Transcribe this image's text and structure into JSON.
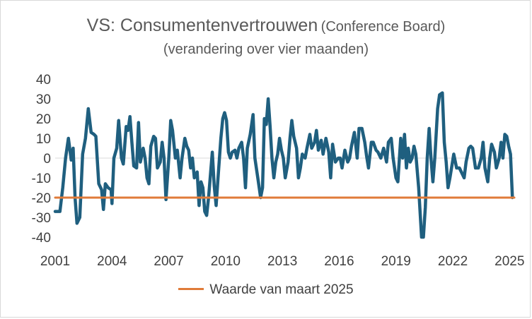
{
  "title": {
    "main": "VS: Consumentenvertrouwen",
    "sub": "(Conference Board)",
    "subtitle": "(verandering over vier maanden)"
  },
  "chart_data": {
    "type": "line",
    "x_ticks": [
      "2001",
      "2004",
      "2007",
      "2010",
      "2013",
      "2016",
      "2019",
      "2022",
      "2025"
    ],
    "y_ticks": [
      "40",
      "30",
      "20",
      "10",
      "0",
      "-10",
      "-20",
      "-30",
      "-40"
    ],
    "xlim": [
      2001.0,
      2025.25
    ],
    "ylim": [
      -40,
      40
    ],
    "series": [
      {
        "name": "Consumentenvertrouwen (verandering over vier maanden)",
        "color": "#1f5f7f",
        "points": [
          [
            2001.0,
            -27
          ],
          [
            2001.25,
            -27
          ],
          [
            2001.4,
            -15
          ],
          [
            2001.55,
            0
          ],
          [
            2001.7,
            10
          ],
          [
            2001.85,
            -1
          ],
          [
            2001.95,
            5
          ],
          [
            2002.05,
            -20
          ],
          [
            2002.15,
            -33
          ],
          [
            2002.3,
            -30
          ],
          [
            2002.45,
            2
          ],
          [
            2002.6,
            10
          ],
          [
            2002.75,
            25
          ],
          [
            2002.9,
            13
          ],
          [
            2003.05,
            12
          ],
          [
            2003.15,
            11
          ],
          [
            2003.3,
            -13
          ],
          [
            2003.45,
            -16
          ],
          [
            2003.55,
            -26
          ],
          [
            2003.65,
            -13
          ],
          [
            2003.8,
            -15
          ],
          [
            2003.95,
            -16
          ],
          [
            2004.0,
            -23
          ],
          [
            2004.1,
            0
          ],
          [
            2004.25,
            5
          ],
          [
            2004.35,
            19
          ],
          [
            2004.5,
            0
          ],
          [
            2004.6,
            -3
          ],
          [
            2004.75,
            16
          ],
          [
            2004.85,
            14
          ],
          [
            2004.95,
            21
          ],
          [
            2005.05,
            8
          ],
          [
            2005.15,
            -4
          ],
          [
            2005.3,
            -5
          ],
          [
            2005.4,
            18
          ],
          [
            2005.5,
            -2
          ],
          [
            2005.65,
            5
          ],
          [
            2005.75,
            0
          ],
          [
            2005.85,
            -10
          ],
          [
            2005.95,
            -13
          ],
          [
            2006.05,
            6
          ],
          [
            2006.2,
            11
          ],
          [
            2006.3,
            10
          ],
          [
            2006.4,
            -5
          ],
          [
            2006.55,
            -2
          ],
          [
            2006.65,
            8
          ],
          [
            2006.75,
            0
          ],
          [
            2006.85,
            -21
          ],
          [
            2007.0,
            0
          ],
          [
            2007.1,
            19
          ],
          [
            2007.2,
            14
          ],
          [
            2007.35,
            0
          ],
          [
            2007.45,
            4
          ],
          [
            2007.6,
            -10
          ],
          [
            2007.7,
            0
          ],
          [
            2007.85,
            10
          ],
          [
            2007.95,
            6
          ],
          [
            2008.05,
            4
          ],
          [
            2008.15,
            -5
          ],
          [
            2008.25,
            0
          ],
          [
            2008.35,
            -10
          ],
          [
            2008.5,
            -7
          ],
          [
            2008.6,
            -24
          ],
          [
            2008.7,
            -12
          ],
          [
            2008.8,
            -15
          ],
          [
            2008.9,
            -27
          ],
          [
            2009.0,
            -29
          ],
          [
            2009.1,
            -20
          ],
          [
            2009.3,
            3
          ],
          [
            2009.4,
            -14
          ],
          [
            2009.5,
            -24
          ],
          [
            2009.6,
            -10
          ],
          [
            2009.75,
            10
          ],
          [
            2009.85,
            20
          ],
          [
            2009.95,
            23
          ],
          [
            2010.05,
            19
          ],
          [
            2010.15,
            3
          ],
          [
            2010.25,
            0
          ],
          [
            2010.35,
            3
          ],
          [
            2010.5,
            4
          ],
          [
            2010.6,
            0
          ],
          [
            2010.7,
            5
          ],
          [
            2010.85,
            8
          ],
          [
            2010.95,
            0
          ],
          [
            2011.05,
            -15
          ],
          [
            2011.15,
            5
          ],
          [
            2011.3,
            12
          ],
          [
            2011.45,
            22
          ],
          [
            2011.55,
            0
          ],
          [
            2011.7,
            -10
          ],
          [
            2011.85,
            -20
          ],
          [
            2011.95,
            -15
          ],
          [
            2012.05,
            20
          ],
          [
            2012.15,
            17
          ],
          [
            2012.25,
            30
          ],
          [
            2012.35,
            16
          ],
          [
            2012.45,
            0
          ],
          [
            2012.55,
            -10
          ],
          [
            2012.65,
            -2
          ],
          [
            2012.75,
            2
          ],
          [
            2012.85,
            10
          ],
          [
            2012.95,
            4
          ],
          [
            2013.05,
            0
          ],
          [
            2013.15,
            -10
          ],
          [
            2013.3,
            -2
          ],
          [
            2013.4,
            10
          ],
          [
            2013.5,
            19
          ],
          [
            2013.6,
            11
          ],
          [
            2013.75,
            5
          ],
          [
            2013.85,
            -10
          ],
          [
            2013.95,
            -5
          ],
          [
            2014.05,
            2
          ],
          [
            2014.2,
            0
          ],
          [
            2014.3,
            5
          ],
          [
            2014.45,
            12
          ],
          [
            2014.55,
            5
          ],
          [
            2014.7,
            8
          ],
          [
            2014.8,
            14
          ],
          [
            2014.9,
            4
          ],
          [
            2015.05,
            9
          ],
          [
            2015.15,
            2
          ],
          [
            2015.3,
            10
          ],
          [
            2015.45,
            3
          ],
          [
            2015.55,
            -10
          ],
          [
            2015.65,
            7
          ],
          [
            2015.8,
            -2
          ],
          [
            2015.95,
            0
          ],
          [
            2016.05,
            0
          ],
          [
            2016.15,
            -5
          ],
          [
            2016.3,
            4
          ],
          [
            2016.45,
            -2
          ],
          [
            2016.55,
            0
          ],
          [
            2016.65,
            6
          ],
          [
            2016.8,
            13
          ],
          [
            2016.95,
            0
          ],
          [
            2017.05,
            15
          ],
          [
            2017.2,
            15
          ],
          [
            2017.35,
            8
          ],
          [
            2017.45,
            1
          ],
          [
            2017.55,
            -5
          ],
          [
            2017.7,
            8
          ],
          [
            2017.8,
            8
          ],
          [
            2017.95,
            4
          ],
          [
            2018.05,
            3
          ],
          [
            2018.2,
            0
          ],
          [
            2018.35,
            5
          ],
          [
            2018.5,
            -2
          ],
          [
            2018.6,
            8
          ],
          [
            2018.75,
            10
          ],
          [
            2018.85,
            0
          ],
          [
            2019.0,
            -10
          ],
          [
            2019.1,
            -12
          ],
          [
            2019.25,
            10
          ],
          [
            2019.35,
            0
          ],
          [
            2019.45,
            12
          ],
          [
            2019.55,
            -5
          ],
          [
            2019.65,
            5
          ],
          [
            2019.75,
            -2
          ],
          [
            2019.85,
            0
          ],
          [
            2019.95,
            6
          ],
          [
            2020.05,
            2
          ],
          [
            2020.2,
            -15
          ],
          [
            2020.35,
            -40
          ],
          [
            2020.45,
            -40
          ],
          [
            2020.55,
            -25
          ],
          [
            2020.65,
            0
          ],
          [
            2020.75,
            15
          ],
          [
            2020.85,
            0
          ],
          [
            2020.95,
            -12
          ],
          [
            2021.05,
            0
          ],
          [
            2021.2,
            25
          ],
          [
            2021.3,
            32
          ],
          [
            2021.45,
            33
          ],
          [
            2021.55,
            8
          ],
          [
            2021.65,
            -2
          ],
          [
            2021.75,
            -15
          ],
          [
            2021.85,
            -10
          ],
          [
            2022.05,
            2
          ],
          [
            2022.2,
            -5
          ],
          [
            2022.35,
            -5
          ],
          [
            2022.5,
            -8
          ],
          [
            2022.6,
            -10
          ],
          [
            2022.7,
            -2
          ],
          [
            2022.85,
            5
          ],
          [
            2022.95,
            6
          ],
          [
            2023.05,
            5
          ],
          [
            2023.2,
            -5
          ],
          [
            2023.35,
            -5
          ],
          [
            2023.5,
            0
          ],
          [
            2023.6,
            8
          ],
          [
            2023.7,
            -5
          ],
          [
            2023.85,
            -12
          ],
          [
            2023.95,
            0
          ],
          [
            2024.05,
            7
          ],
          [
            2024.2,
            3
          ],
          [
            2024.3,
            -5
          ],
          [
            2024.45,
            0
          ],
          [
            2024.55,
            8
          ],
          [
            2024.65,
            0
          ],
          [
            2024.75,
            12
          ],
          [
            2024.85,
            11
          ],
          [
            2024.95,
            6
          ],
          [
            2025.05,
            2
          ],
          [
            2025.15,
            -20
          ]
        ]
      },
      {
        "name": "Waarde van maart 2025",
        "color": "#e07b39",
        "points": [
          [
            2001.0,
            -20
          ],
          [
            2025.25,
            -20
          ]
        ]
      }
    ],
    "legend": {
      "entries": [
        "Waarde van maart 2025"
      ],
      "position": "bottom"
    }
  }
}
